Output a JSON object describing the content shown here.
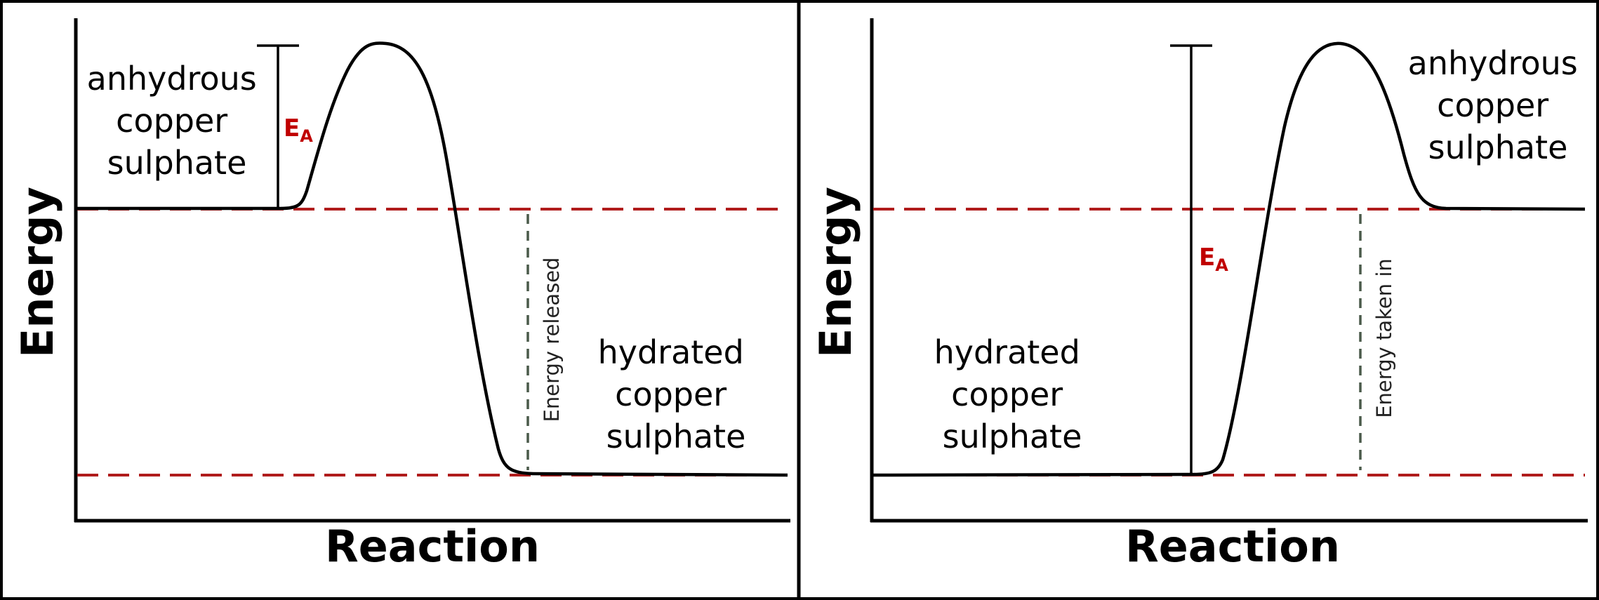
{
  "diagrams": [
    {
      "y_axis_label": "Energy",
      "x_axis_label": "Reaction",
      "reactant": {
        "line1": "anhydrous",
        "line2": "copper",
        "line3": "sulphate"
      },
      "product": {
        "line1": "hydrated",
        "line2": "copper",
        "line3": "sulphate"
      },
      "activation_energy": {
        "main": "E",
        "sub": "A"
      },
      "energy_change_label": "Energy released",
      "type": "exothermic"
    },
    {
      "y_axis_label": "Energy",
      "x_axis_label": "Reaction",
      "reactant": {
        "line1": "hydrated",
        "line2": "copper",
        "line3": "sulphate"
      },
      "product": {
        "line1": "anhydrous",
        "line2": "copper",
        "line3": "sulphate"
      },
      "activation_energy": {
        "main": "E",
        "sub": "A"
      },
      "energy_change_label": "Energy taken in",
      "type": "endothermic"
    }
  ],
  "colors": {
    "curve": "#000000",
    "level_dashes": "#b01c1c",
    "energy_change_dashes": "#4a5a4a",
    "activation_label": "#c00000",
    "panel_border": "#000000"
  }
}
